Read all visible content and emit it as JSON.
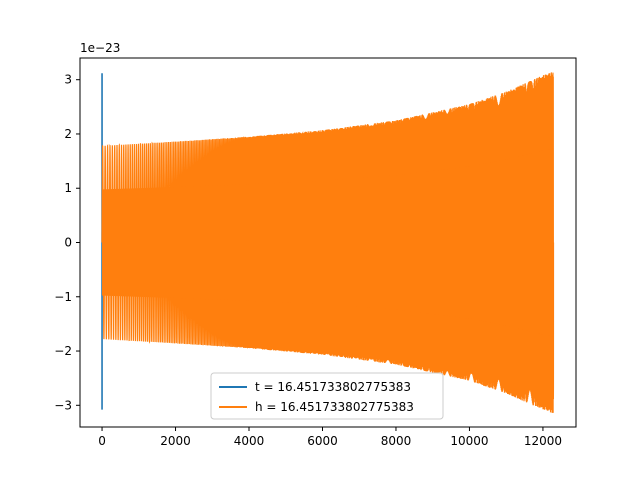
{
  "chart_data": {
    "type": "line",
    "title": "",
    "xlabel": "",
    "ylabel": "",
    "y_offset_label": "1e−23",
    "y_scale": 1e-23,
    "xlim": [
      -600,
      12900
    ],
    "ylim": [
      -3.4,
      3.4
    ],
    "xticks": [
      0,
      2000,
      4000,
      6000,
      8000,
      10000,
      12000
    ],
    "xtick_labels": [
      "0",
      "2000",
      "4000",
      "6000",
      "8000",
      "10000",
      "12000"
    ],
    "yticks": [
      -3,
      -2,
      -1,
      0,
      1,
      2,
      3
    ],
    "ytick_labels": [
      "−3",
      "−2",
      "−1",
      "0",
      "1",
      "2",
      "3"
    ],
    "grid": false,
    "legend_position": "lower-center",
    "series": [
      {
        "name": "t = 16.451733802775383",
        "color": "#1f77b4",
        "description_points": {
          "spike_x": [
            0,
            0
          ],
          "spike_y": [
            3.12,
            -3.08
          ]
        }
      },
      {
        "name": "h = 16.451733802775383",
        "color": "#ff7f0e",
        "x_start": 0,
        "x_end": 12288,
        "envelope_x": [
          0,
          2000,
          4000,
          6000,
          8000,
          10000,
          11000,
          12000,
          12288
        ],
        "envelope_y": [
          1.78,
          1.86,
          1.95,
          2.07,
          2.25,
          2.55,
          2.78,
          3.08,
          3.15
        ]
      }
    ]
  }
}
